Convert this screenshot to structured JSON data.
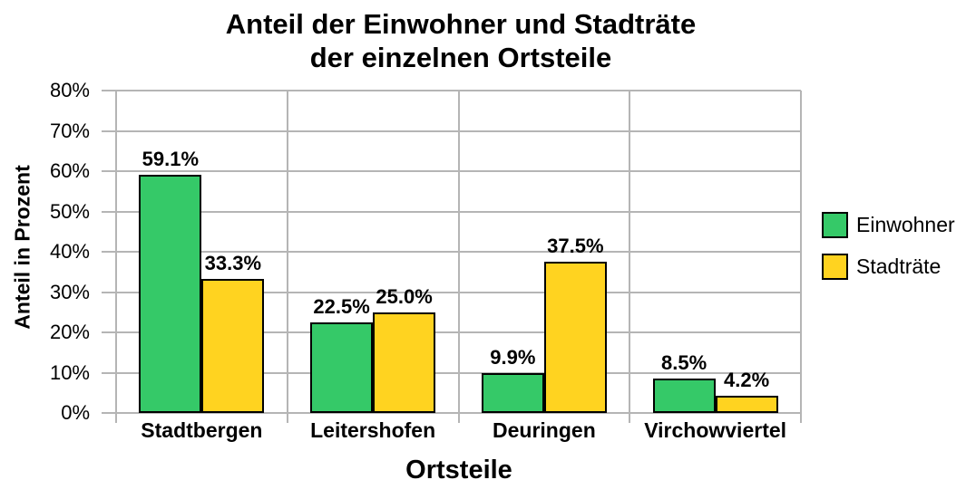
{
  "chart_data": {
    "type": "bar",
    "title_lines": [
      "Anteil der Einwohner und Stadträte",
      "der einzelnen Ortsteile"
    ],
    "xlabel": "Ortsteile",
    "ylabel": "Anteil in Prozent",
    "categories": [
      "Stadtbergen",
      "Leitershofen",
      "Deuringen",
      "Virchowviertel"
    ],
    "series": [
      {
        "name": "Einwohner",
        "color": "#35c968",
        "values": [
          59.1,
          22.5,
          9.9,
          8.5
        ],
        "data_labels": [
          "59.1%",
          "22.5%",
          "9.9%",
          "8.5%"
        ]
      },
      {
        "name": "Stadträte",
        "color": "#ffd320",
        "values": [
          33.3,
          25.0,
          37.5,
          4.2
        ],
        "data_labels": [
          "33.3%",
          "25.0%",
          "37.5%",
          "4.2%"
        ]
      }
    ],
    "y_axis": {
      "min": 0,
      "max": 80,
      "tick_step": 10,
      "tick_labels": [
        "0%",
        "10%",
        "20%",
        "30%",
        "40%",
        "50%",
        "60%",
        "70%",
        "80%"
      ]
    },
    "grid": true,
    "legend_position": "right",
    "colors": {
      "bar_border": "#000000",
      "grid": "#b5b5b5",
      "background": "#ffffff",
      "text": "#000000"
    }
  }
}
